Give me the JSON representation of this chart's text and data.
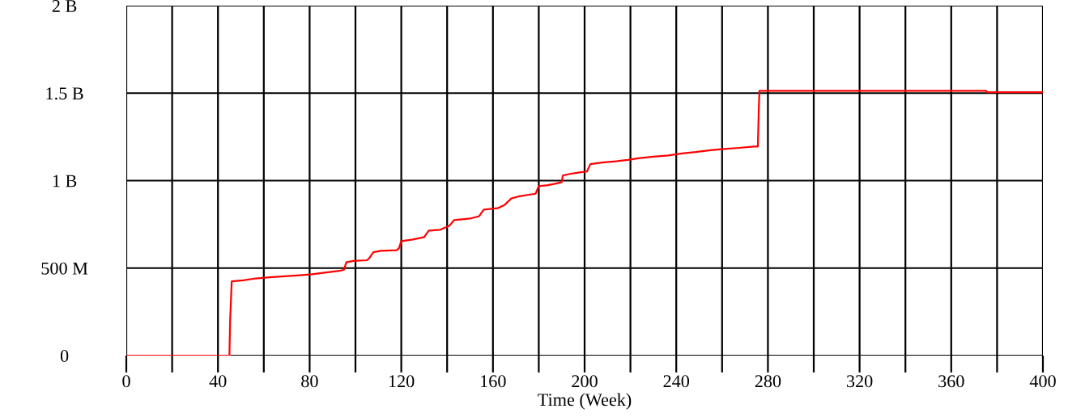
{
  "chart_data": {
    "type": "line",
    "xlabel": "Time (Week)",
    "xlim": [
      0,
      400
    ],
    "ylim": [
      0,
      2000000000
    ],
    "xticks": [
      0,
      {
        "value": 20,
        "label": null
      },
      40,
      {
        "value": 60,
        "label": null
      },
      80,
      {
        "value": 100,
        "label": null
      },
      120,
      {
        "value": 140,
        "label": null
      },
      160,
      {
        "value": 180,
        "label": null
      },
      200,
      {
        "value": 220,
        "label": null
      },
      240,
      {
        "value": 260,
        "label": null
      },
      280,
      {
        "value": 300,
        "label": null
      },
      320,
      {
        "value": 340,
        "label": null
      },
      360,
      {
        "value": 380,
        "label": null
      },
      400
    ],
    "yticks": [
      0,
      {
        "value": 500000000,
        "label": "500 M"
      },
      {
        "value": 1000000000,
        "label": "1 B"
      },
      {
        "value": 1500000000,
        "label": "1.5 B"
      },
      {
        "value": 2000000000,
        "label": "2 B"
      }
    ],
    "grid": true,
    "line_style": "solid",
    "marker": "none",
    "series": [
      {
        "color": "#ff0000",
        "x": [
          0,
          45,
          45.3,
          46,
          51,
          56.5,
          62.5,
          69,
          74.5,
          81,
          88,
          93,
          95,
          96,
          99,
          105,
          106,
          107.8,
          111,
          118,
          119,
          120,
          125,
          130,
          132,
          137,
          141,
          143,
          150,
          154,
          156,
          162,
          165,
          168,
          171,
          175,
          178.6,
          180,
          184,
          187.5,
          190,
          190.5,
          193,
          197.7,
          201,
          202.5,
          207.5,
          213.5,
          218.8,
          224,
          230,
          236.5,
          242.5,
          248.4,
          254.9,
          260.8,
          267.3,
          273.8,
          275.6,
          276,
          276.3,
          375.3,
          375.6,
          400
        ],
        "values": [
          0,
          0,
          200000000,
          424000000,
          430000000,
          441000000,
          447000000,
          453000000,
          458000000,
          465000000,
          476000000,
          484000000,
          491000000,
          533000000,
          541000000,
          545000000,
          556000000,
          591000000,
          599000000,
          602000000,
          614000000,
          654000000,
          663000000,
          677000000,
          714000000,
          719000000,
          742000000,
          774000000,
          783000000,
          797000000,
          834000000,
          842000000,
          860000000,
          898000000,
          909000000,
          918000000,
          925000000,
          968000000,
          974000000,
          983000000,
          991000000,
          1029000000,
          1037000000,
          1047000000,
          1052000000,
          1094000000,
          1103000000,
          1110000000,
          1118000000,
          1129000000,
          1137000000,
          1144000000,
          1155000000,
          1163000000,
          1174000000,
          1181000000,
          1187000000,
          1195000000,
          1195000000,
          1400000000,
          1513000000,
          1513000000,
          1505000000,
          1505000000
        ]
      }
    ]
  }
}
